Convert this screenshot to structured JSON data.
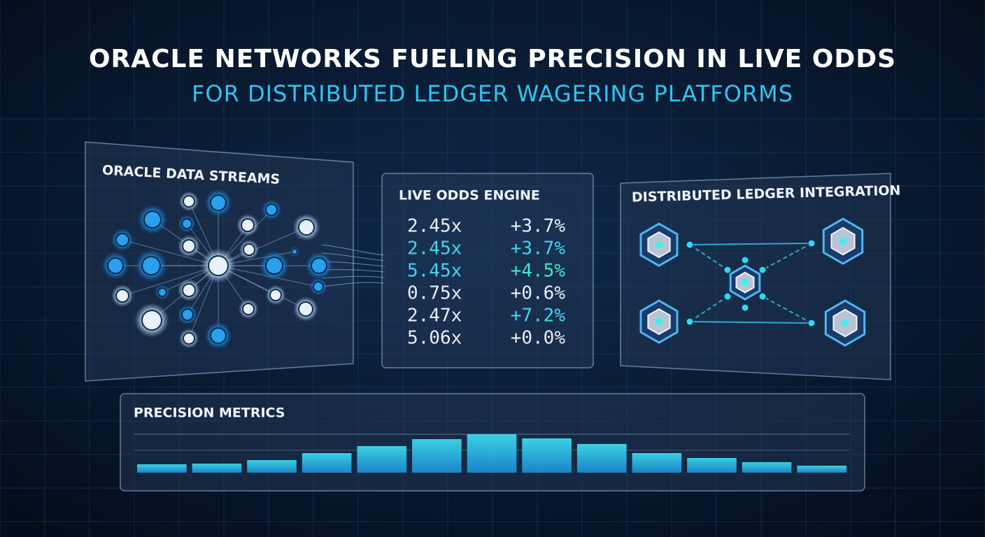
{
  "header": {
    "title": "ORACLE NETWORKS FUELING PRECISION IN LIVE ODDS",
    "subtitle": "FOR DISTRIBUTED LEDGER WAGERING PLATFORMS"
  },
  "panels": {
    "oracle": {
      "title": "ORACLE DATA STREAMS"
    },
    "odds": {
      "title": "LIVE ODDS ENGINE",
      "rows": [
        [
          "2.45x",
          "+3.7%"
        ],
        [
          "2.45x",
          "+3.7%"
        ],
        [
          "5.45x",
          "+4.5%"
        ],
        [
          "0.75x",
          "+0.6%"
        ],
        [
          "2.47x",
          "+7.2%"
        ],
        [
          "5.06x",
          "+0.0%"
        ]
      ]
    },
    "ledger": {
      "title": "DISTRIBUTED LEDGER INTEGRATION"
    },
    "metrics": {
      "title": "PRECISION METRICS"
    }
  }
}
